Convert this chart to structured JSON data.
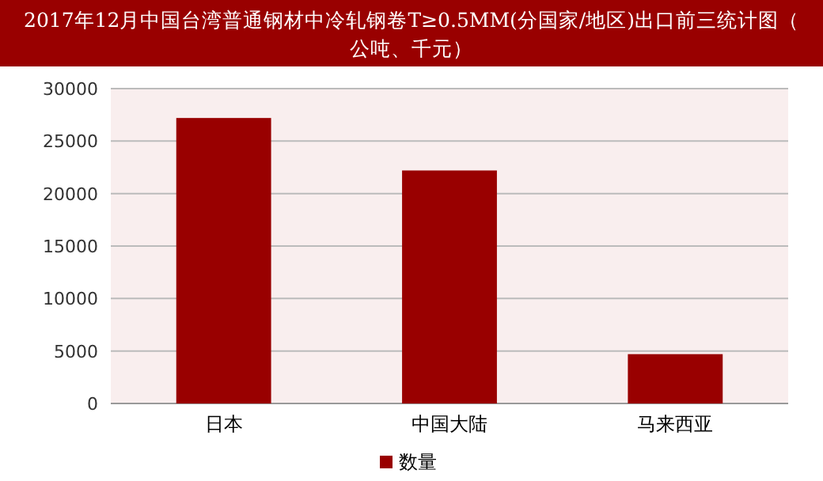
{
  "chart_data": {
    "type": "bar",
    "title": "2017年12月中国台湾普通钢材中冷轧钢卷T≥0.5MM(分国家/地区)出口前三统计图（公吨、千元）",
    "categories": [
      "日本",
      "中国大陆",
      "马来西亚"
    ],
    "series": [
      {
        "name": "数量",
        "color": "#990000",
        "values": [
          27200,
          22200,
          4700
        ]
      }
    ],
    "ylim": [
      0,
      30000
    ],
    "yticks": [
      0,
      5000,
      10000,
      15000,
      20000,
      25000,
      30000
    ],
    "grid": "y",
    "legend": "bottom"
  }
}
